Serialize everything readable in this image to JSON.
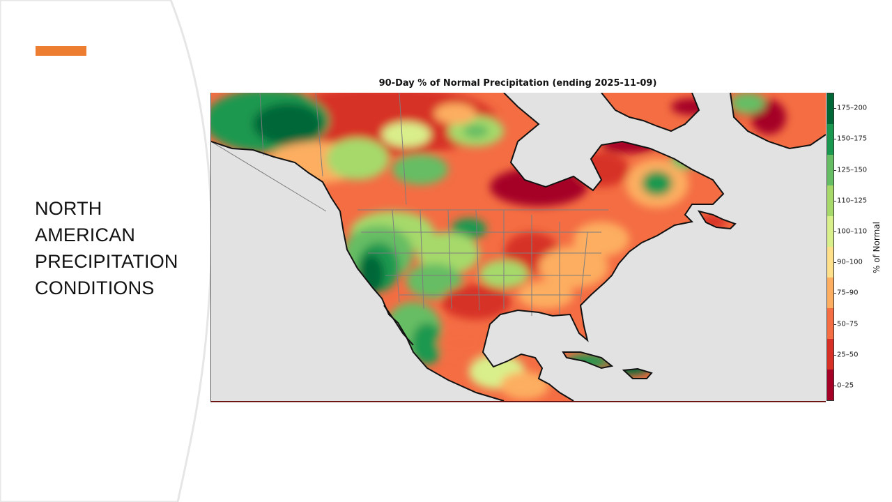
{
  "slide": {
    "title": "NORTH\nAMERICAN\nPRECIPITATION\nCONDITIONS",
    "accent_color": "#ed7d31"
  },
  "map": {
    "title": "90-Day % of Normal Precipitation (ending 2025-11-09)",
    "ocean_color": "#e2e2e2",
    "legend_title": "% of Normal",
    "legend": [
      {
        "label": "175–200",
        "color": "#006837"
      },
      {
        "label": "150–175",
        "color": "#1a9850"
      },
      {
        "label": "125–150",
        "color": "#66bd63"
      },
      {
        "label": "110–125",
        "color": "#a6d96a"
      },
      {
        "label": "100–110",
        "color": "#d9ef8b"
      },
      {
        "label": "90–100",
        "color": "#fee08b"
      },
      {
        "label": "75–90",
        "color": "#fdae61"
      },
      {
        "label": "50–75",
        "color": "#f46d43"
      },
      {
        "label": "25–50",
        "color": "#d73027"
      },
      {
        "label": "0–25",
        "color": "#a50026"
      }
    ]
  }
}
